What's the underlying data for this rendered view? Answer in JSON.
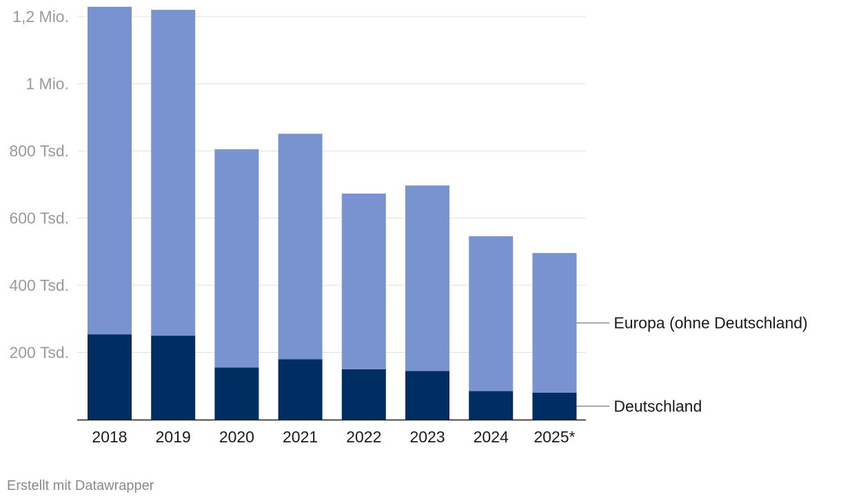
{
  "chart_data": {
    "type": "bar",
    "stacked": true,
    "categories": [
      "2018",
      "2019",
      "2020",
      "2021",
      "2022",
      "2023",
      "2024",
      "2025*"
    ],
    "series": [
      {
        "name": "Deutschland",
        "color": "#002d62",
        "values": [
          254000,
          250000,
          155000,
          180000,
          150000,
          145000,
          85000,
          80000
        ]
      },
      {
        "name": "Europa (ohne Deutschland)",
        "color": "#7893d0",
        "values": [
          975000,
          970000,
          650000,
          671000,
          523000,
          552000,
          461000,
          416000
        ]
      }
    ],
    "ylim": [
      0,
      1200000
    ],
    "yticks": [
      {
        "value": 200000,
        "label": "200 Tsd."
      },
      {
        "value": 400000,
        "label": "400 Tsd."
      },
      {
        "value": 600000,
        "label": "600 Tsd."
      },
      {
        "value": 800000,
        "label": "800 Tsd."
      },
      {
        "value": 1000000,
        "label": "1 Mio."
      },
      {
        "value": 1200000,
        "label": "1,2 Mio."
      }
    ],
    "grid": true,
    "legend": "direct labels right"
  },
  "footer": {
    "credit": "Erstellt mit Datawrapper"
  }
}
